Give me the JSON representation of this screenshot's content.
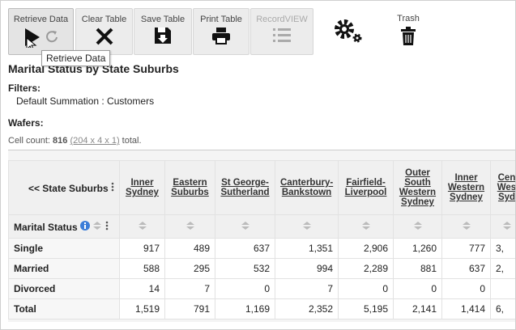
{
  "toolbar": {
    "buttons": [
      {
        "label": "Retrieve Data"
      },
      {
        "label": "Clear Table"
      },
      {
        "label": "Save Table"
      },
      {
        "label": "Print Table"
      },
      {
        "label": "RecordVIEW"
      },
      {
        "label": "Trash"
      }
    ]
  },
  "tooltip": "Retrieve Data",
  "title": "Marital Status by State Suburbs",
  "filters": {
    "label": "Filters:",
    "items": [
      "Default Summation : Customers"
    ]
  },
  "wafers": {
    "label": "Wafers:"
  },
  "cell_count": {
    "prefix": "Cell count:",
    "count": "816",
    "dims": "(204 x 4 x 1)",
    "suffix": "total."
  },
  "table": {
    "column_header": "<< State Suburbs",
    "row_header": "Marital Status",
    "columns": [
      "Inner Sydney",
      "Eastern Suburbs",
      "St George-Sutherland",
      "Canterbury-Bankstown",
      "Fairfield-Liverpool",
      "Outer South Western Sydney",
      "Inner Western Sydney",
      "Cen Wes Syd"
    ],
    "rows": [
      {
        "label": "Single",
        "values": [
          "917",
          "489",
          "637",
          "1,351",
          "2,906",
          "1,260",
          "777",
          "3,"
        ]
      },
      {
        "label": "Married",
        "values": [
          "588",
          "295",
          "532",
          "994",
          "2,289",
          "881",
          "637",
          "2,"
        ]
      },
      {
        "label": "Divorced",
        "values": [
          "14",
          "7",
          "0",
          "7",
          "0",
          "0",
          "0",
          null
        ]
      },
      {
        "label": "Total",
        "values": [
          "1,519",
          "791",
          "1,169",
          "2,352",
          "5,195",
          "2,141",
          "1,414",
          "6,"
        ]
      }
    ]
  }
}
